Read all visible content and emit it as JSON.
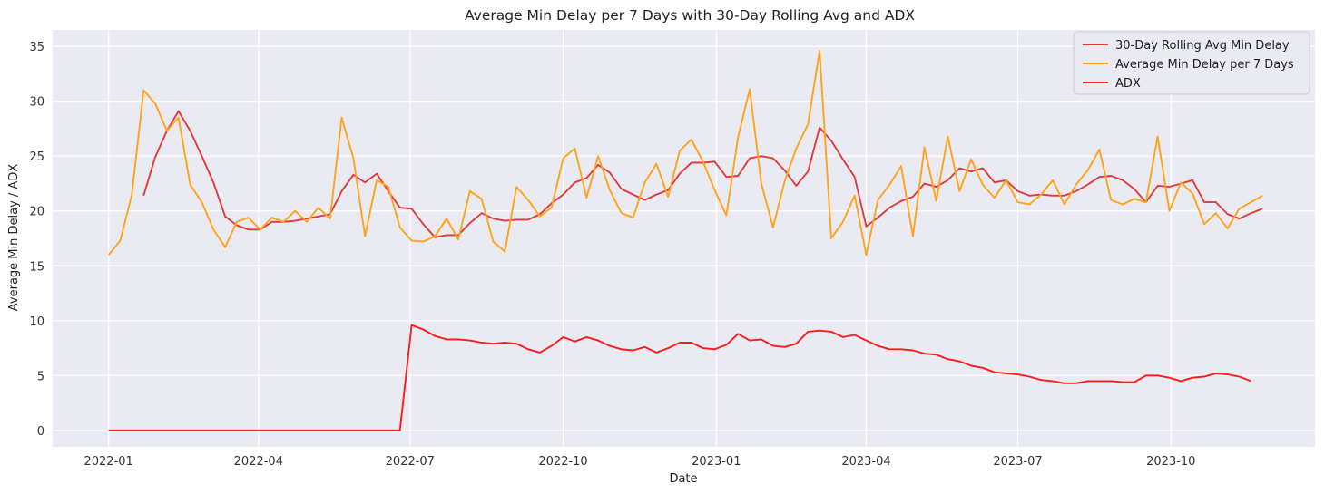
{
  "chart_data": {
    "type": "line",
    "title": "Average Min Delay per 7 Days with 30-Day Rolling Avg and ADX",
    "xlabel": "Date",
    "ylabel": "Average Min Delay / ADX",
    "ylim": [
      -1.5,
      36.5
    ],
    "yticks": [
      0,
      5,
      10,
      15,
      20,
      25,
      30,
      35
    ],
    "xticks": [
      {
        "label": "2022-01",
        "t": 0
      },
      {
        "label": "2022-04",
        "t": 12.86
      },
      {
        "label": "2022-07",
        "t": 25.86
      },
      {
        "label": "2022-10",
        "t": 39
      },
      {
        "label": "2023-01",
        "t": 52.14
      },
      {
        "label": "2023-04",
        "t": 65
      },
      {
        "label": "2023-07",
        "t": 78
      },
      {
        "label": "2023-10",
        "t": 91.14
      }
    ],
    "x_unit": "weeks since 2022-01-02",
    "xlim": [
      -4.8,
      103.5
    ],
    "grid": true,
    "legend_position": "top-right",
    "series": [
      {
        "name": "30-Day Rolling Avg Min Delay",
        "color": "#e03a3a",
        "x_start": 3,
        "values": [
          21.4,
          24.9,
          27.3,
          29.1,
          27.3,
          25.0,
          22.6,
          19.5,
          18.7,
          18.3,
          18.3,
          19.0,
          19.0,
          19.1,
          19.3,
          19.5,
          19.7,
          21.8,
          23.3,
          22.6,
          23.4,
          21.8,
          20.3,
          20.2,
          18.8,
          17.6,
          17.8,
          17.8,
          18.9,
          19.8,
          19.3,
          19.1,
          19.2,
          19.2,
          19.7,
          20.7,
          21.5,
          22.6,
          23.0,
          24.2,
          23.5,
          22.0,
          21.5,
          21.0,
          21.5,
          21.9,
          23.4,
          24.4,
          24.4,
          24.5,
          23.1,
          23.2,
          24.8,
          25.0,
          24.8,
          23.7,
          22.3,
          23.6,
          27.6,
          26.4,
          24.7,
          23.1,
          18.6,
          19.4,
          20.3,
          20.9,
          21.3,
          22.5,
          22.2,
          22.8,
          23.9,
          23.6,
          23.9,
          22.6,
          22.8,
          21.8,
          21.4,
          21.5,
          21.4,
          21.4,
          21.8,
          22.4,
          23.1,
          23.2,
          22.8,
          22.0,
          20.8,
          22.3,
          22.2,
          22.5,
          22.8,
          20.8,
          20.8,
          19.7,
          19.3,
          19.8,
          20.2
        ]
      },
      {
        "name": "Average Min Delay per 7 Days",
        "color": "#ffa31a",
        "x_start": 0,
        "values": [
          16.0,
          17.3,
          21.5,
          31.0,
          29.8,
          27.3,
          28.5,
          22.4,
          20.8,
          18.3,
          16.7,
          19.0,
          19.4,
          18.3,
          19.4,
          19.0,
          20.0,
          19.0,
          20.3,
          19.3,
          28.5,
          24.8,
          17.7,
          22.8,
          22.2,
          18.5,
          17.3,
          17.2,
          17.7,
          19.3,
          17.4,
          21.8,
          21.1,
          17.2,
          16.3,
          22.2,
          21.0,
          19.5,
          20.3,
          24.8,
          25.7,
          21.2,
          25.0,
          21.9,
          19.8,
          19.4,
          22.6,
          24.3,
          21.3,
          25.5,
          26.5,
          24.5,
          21.9,
          19.6,
          26.7,
          31.1,
          22.5,
          18.5,
          22.7,
          25.7,
          27.9,
          34.6,
          17.5,
          19.0,
          21.4,
          16.0,
          21.0,
          22.4,
          24.1,
          17.7,
          25.8,
          20.9,
          26.8,
          21.8,
          24.7,
          22.4,
          21.2,
          22.8,
          20.8,
          20.6,
          21.5,
          22.8,
          20.6,
          22.4,
          23.7,
          25.6,
          21.0,
          20.6,
          21.1,
          20.8,
          26.8,
          20.0,
          22.6,
          21.6,
          18.8,
          19.8,
          18.4,
          20.2,
          20.8,
          21.4
        ]
      },
      {
        "name": "ADX",
        "color": "#ff1a1a",
        "x_start": 0,
        "values": [
          0,
          0,
          0,
          0,
          0,
          0,
          0,
          0,
          0,
          0,
          0,
          0,
          0,
          0,
          0,
          0,
          0,
          0,
          0,
          0,
          0,
          0,
          0,
          0,
          0,
          0,
          9.6,
          9.2,
          8.6,
          8.3,
          8.3,
          8.2,
          8.0,
          7.9,
          8.0,
          7.9,
          7.4,
          7.1,
          7.7,
          8.5,
          8.1,
          8.5,
          8.2,
          7.7,
          7.4,
          7.3,
          7.6,
          7.1,
          7.5,
          8.0,
          8.0,
          7.5,
          7.4,
          7.8,
          8.8,
          8.2,
          8.3,
          7.7,
          7.6,
          7.9,
          9.0,
          9.1,
          9.0,
          8.5,
          8.7,
          8.2,
          7.7,
          7.4,
          7.4,
          7.3,
          7.0,
          6.9,
          6.5,
          6.3,
          5.9,
          5.7,
          5.3,
          5.2,
          5.1,
          4.9,
          4.6,
          4.5,
          4.3,
          4.3,
          4.5,
          4.5,
          4.5,
          4.4,
          4.4,
          5.0,
          5.0,
          4.8,
          4.5,
          4.8,
          4.9,
          5.2,
          5.1,
          4.9,
          4.5
        ]
      }
    ]
  }
}
